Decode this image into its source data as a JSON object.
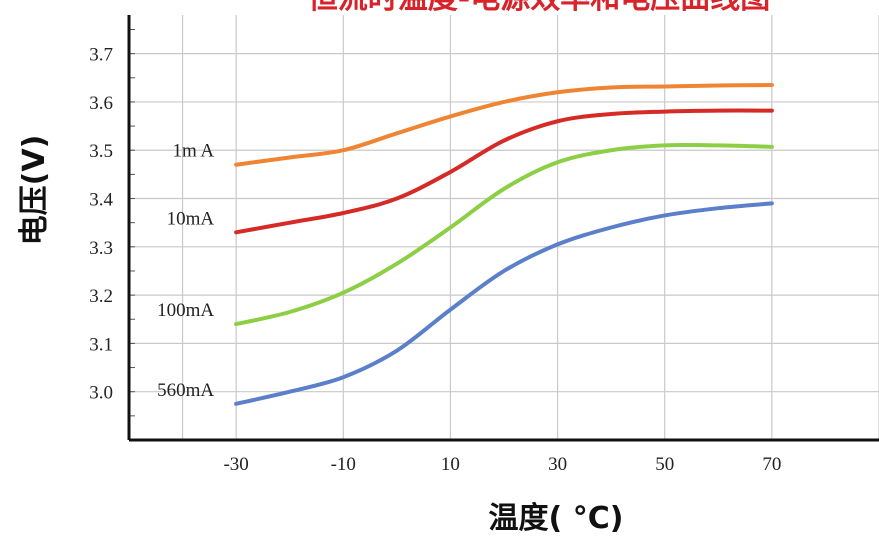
{
  "chart_data": {
    "type": "line",
    "title": "恒流时温度-电源效率和电压曲线图",
    "xlabel": "温度( °C)",
    "ylabel": "电压(V)",
    "x": [
      -30,
      -10,
      10,
      30,
      50,
      70
    ],
    "xticks": [
      "-30",
      "-10",
      "10",
      "30",
      "50",
      "70"
    ],
    "yticks": [
      "3.0",
      "3.1",
      "3.2",
      "3.3",
      "3.4",
      "3.5",
      "3.6",
      "3.7"
    ],
    "xlim": [
      -50,
      90
    ],
    "ylim": [
      2.9,
      3.78
    ],
    "grid": true,
    "legend": "inline-left",
    "series": [
      {
        "name": "1m A",
        "color": "#ef8533",
        "points": [
          [
            -30,
            3.47
          ],
          [
            -20,
            3.485
          ],
          [
            -10,
            3.5
          ],
          [
            0,
            3.535
          ],
          [
            10,
            3.57
          ],
          [
            20,
            3.6
          ],
          [
            30,
            3.62
          ],
          [
            40,
            3.63
          ],
          [
            50,
            3.632
          ],
          [
            60,
            3.634
          ],
          [
            70,
            3.635
          ]
        ]
      },
      {
        "name": "10mA",
        "color": "#d52a26",
        "points": [
          [
            -30,
            3.33
          ],
          [
            -20,
            3.35
          ],
          [
            -10,
            3.37
          ],
          [
            0,
            3.4
          ],
          [
            10,
            3.455
          ],
          [
            20,
            3.52
          ],
          [
            30,
            3.56
          ],
          [
            40,
            3.575
          ],
          [
            50,
            3.58
          ],
          [
            60,
            3.582
          ],
          [
            70,
            3.582
          ]
        ]
      },
      {
        "name": "100mA",
        "color": "#8ccf45",
        "points": [
          [
            -30,
            3.14
          ],
          [
            -20,
            3.165
          ],
          [
            -10,
            3.205
          ],
          [
            0,
            3.265
          ],
          [
            10,
            3.34
          ],
          [
            20,
            3.42
          ],
          [
            30,
            3.475
          ],
          [
            40,
            3.5
          ],
          [
            50,
            3.51
          ],
          [
            60,
            3.51
          ],
          [
            70,
            3.507
          ]
        ]
      },
      {
        "name": "560mA",
        "color": "#5b7fca",
        "points": [
          [
            -30,
            2.975
          ],
          [
            -20,
            3.0
          ],
          [
            -10,
            3.03
          ],
          [
            0,
            3.085
          ],
          [
            10,
            3.17
          ],
          [
            20,
            3.25
          ],
          [
            30,
            3.305
          ],
          [
            40,
            3.34
          ],
          [
            50,
            3.365
          ],
          [
            60,
            3.38
          ],
          [
            70,
            3.39
          ]
        ]
      }
    ]
  }
}
